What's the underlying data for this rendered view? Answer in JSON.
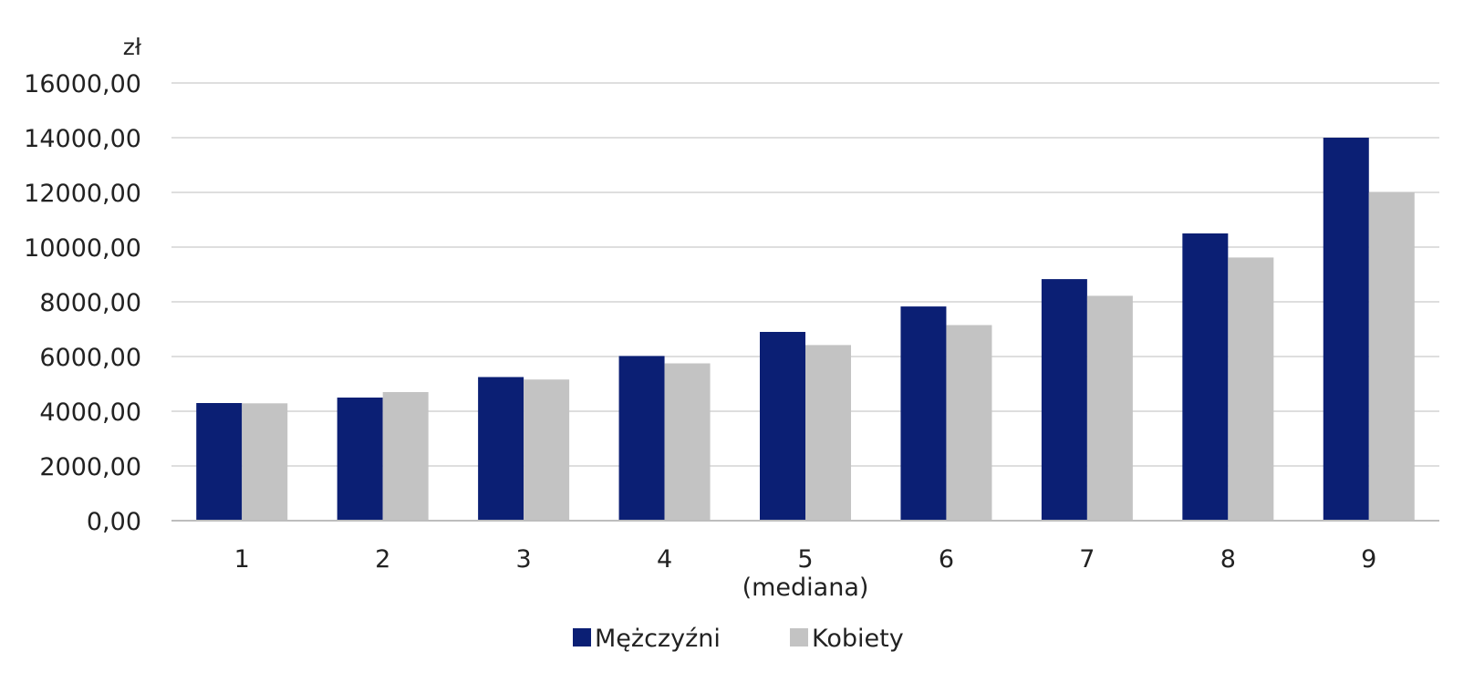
{
  "chart_data": {
    "type": "bar",
    "unit_label": "zł",
    "categories": [
      "1",
      "2",
      "3",
      "4",
      "5",
      "6",
      "7",
      "8",
      "9"
    ],
    "category_sublabels": [
      "",
      "",
      "",
      "",
      "(mediana)",
      "",
      "",
      "",
      ""
    ],
    "series": [
      {
        "name": "Mężczyźni",
        "color": "#0b1f74",
        "values": [
          4300,
          4500,
          5250,
          6020,
          6900,
          7830,
          8830,
          10500,
          14000
        ]
      },
      {
        "name": "Kobiety",
        "color": "#c3c3c3",
        "values": [
          4290,
          4700,
          5160,
          5750,
          6420,
          7150,
          8220,
          9620,
          12000
        ]
      }
    ],
    "ylim": [
      0,
      16000
    ],
    "y_ticks": [
      "0,00",
      "2000,00",
      "4000,00",
      "6000,00",
      "8000,00",
      "10000,00",
      "12000,00",
      "14000,00",
      "16000,00"
    ],
    "y_tick_values": [
      0,
      2000,
      4000,
      6000,
      8000,
      10000,
      12000,
      14000,
      16000
    ],
    "grid": true,
    "gridline_color": "#c9c9c9",
    "legend_position": "bottom"
  }
}
